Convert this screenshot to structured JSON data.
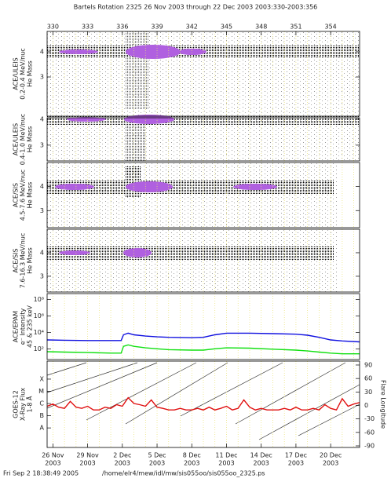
{
  "header": {
    "title": "Bartels Rotation 2325    26 Nov 2003 through 22 Dec 2003    2003:330-2003:356"
  },
  "footer": {
    "timestamp": "Fri Sep  2 18:38:49 2005",
    "path": "/home/elr4/mew/idl/mw/sis055oo/sis055oo_2325.ps"
  },
  "chart_data": [
    {
      "type": "density",
      "ylabel": [
        "ACE/ULEIS",
        "0.2-0.4 MeV/nuc",
        "He Mass"
      ],
      "xlim": [
        329.5,
        356.5
      ],
      "xticks": [
        330,
        333,
        336,
        339,
        342,
        345,
        348,
        351,
        354
      ],
      "grid_days": [
        330,
        331,
        332,
        333,
        334,
        335,
        336,
        337,
        338,
        339,
        340,
        341,
        342,
        343,
        344,
        345,
        346,
        347,
        348,
        349,
        350,
        351,
        352,
        353,
        354,
        355,
        356
      ],
      "grid_color": "#e8e070",
      "ylim": [
        1.44,
        4.81
      ],
      "yticks": [
        3,
        4
      ]
    },
    {
      "type": "density",
      "ylabel": [
        "ACE/ULEIS",
        "0.4-1.0 MeV/nuc",
        "He Mass"
      ],
      "xlim": [
        329.5,
        356.5
      ],
      "ylim": [
        2.39,
        4.06
      ],
      "yticks": [
        3,
        4
      ]
    },
    {
      "type": "density",
      "ylabel": [
        "ACE/SIS",
        "4.5-7.6 MeV/nuc",
        "He Mass"
      ],
      "xlim": [
        329.5,
        356.5
      ],
      "ylim": [
        2.29,
        5.0
      ],
      "yticks": [
        3,
        4
      ]
    },
    {
      "type": "density",
      "ylabel": [
        "ACE/SIS",
        "7.6-16.3 MeV/nuc",
        "He Mass"
      ],
      "xlim": [
        329.5,
        356.5
      ],
      "ylim": [
        2.33,
        5.0
      ],
      "yticks": [
        3,
        4
      ]
    },
    {
      "type": "line",
      "log_y": true,
      "ylabel": [
        "ACE/EPAM",
        "e⁻ Intensity",
        "45 & 235 keV"
      ],
      "xlim": [
        329.5,
        356.5
      ],
      "ylim": [
        5,
        500000000
      ],
      "yticks": [
        {
          "value": 100,
          "label": "10²"
        },
        {
          "value": 10000,
          "label": "10⁴"
        },
        {
          "value": 1000000,
          "label": "10⁶"
        },
        {
          "value": 100000000,
          "label": "10⁸"
        }
      ],
      "x": [
        329.5,
        331,
        333,
        335,
        335.9,
        336.1,
        336.5,
        337,
        338,
        339,
        340,
        342,
        343,
        344,
        345,
        347,
        349,
        351,
        352,
        353,
        354,
        355,
        356.5
      ],
      "series": [
        {
          "color": "#1010e0",
          "values": [
            1200,
            1100,
            1000,
            1000,
            1000,
            5000,
            8000,
            5000,
            3500,
            2800,
            2500,
            2200,
            2500,
            5000,
            8000,
            8000,
            7000,
            6000,
            4500,
            2500,
            1200,
            900,
            700
          ]
        },
        {
          "color": "#10e010",
          "values": [
            45,
            40,
            35,
            30,
            30,
            200,
            300,
            200,
            130,
            100,
            80,
            70,
            70,
            100,
            130,
            120,
            90,
            70,
            55,
            40,
            30,
            25,
            25
          ]
        }
      ]
    },
    {
      "type": "line",
      "log_y": true,
      "ylabel": [
        "GOES-12",
        "X-Ray Flux",
        "1-8 Å"
      ],
      "y2label": "Flare Longitude",
      "xlim": [
        329.5,
        356.5
      ],
      "ylim": [
        2.5e-10,
        0.003
      ],
      "yticks": [
        {
          "value": 1e-08,
          "label": "A"
        },
        {
          "value": 1e-07,
          "label": "B"
        },
        {
          "value": 1e-06,
          "label": "C"
        },
        {
          "value": 1e-05,
          "label": "M"
        },
        {
          "value": 0.0001,
          "label": "X"
        }
      ],
      "y2lim": [
        -93.5,
        98.7
      ],
      "y2ticks": [
        -90,
        -60,
        -30,
        0,
        30,
        60,
        90
      ],
      "xticks": [
        {
          "value": 330,
          "label": "26 Nov"
        },
        {
          "value": 333,
          "label": "29 Nov"
        },
        {
          "value": 336,
          "label": "2 Dec"
        },
        {
          "value": 339,
          "label": "5 Dec"
        },
        {
          "value": 342,
          "label": "8 Dec"
        },
        {
          "value": 345,
          "label": "11 Dec"
        },
        {
          "value": 348,
          "label": "14 Dec"
        },
        {
          "value": 351,
          "label": "17 Dec"
        },
        {
          "value": 354,
          "label": "20 Dec"
        }
      ],
      "xtick_year": "2003",
      "x": [
        329.5,
        330,
        330.5,
        331,
        331.5,
        332,
        332.5,
        333,
        333.5,
        334,
        334.5,
        335,
        335.5,
        336,
        336.5,
        337,
        337.5,
        338,
        338.5,
        339,
        339.5,
        340,
        340.5,
        341,
        341.5,
        342,
        342.5,
        343,
        343.5,
        344,
        344.5,
        345,
        345.5,
        346,
        346.5,
        347,
        347.5,
        348,
        348.5,
        349,
        349.5,
        350,
        350.5,
        351,
        351.5,
        352,
        352.5,
        353,
        353.5,
        354,
        354.5,
        355,
        355.5,
        356,
        356.5
      ],
      "series": [
        {
          "color": "#e01010",
          "values": [
            6e-07,
            9e-07,
            5e-07,
            4e-07,
            1.5e-06,
            5e-07,
            4e-07,
            6e-07,
            3e-07,
            3e-07,
            5e-07,
            4e-07,
            8e-07,
            6e-07,
            3e-06,
            1e-06,
            8e-07,
            6e-07,
            2e-06,
            5e-07,
            4e-07,
            3e-07,
            3e-07,
            4e-07,
            3e-07,
            3e-07,
            4e-07,
            3e-07,
            5e-07,
            3e-07,
            4e-07,
            6e-07,
            3e-07,
            4e-07,
            2e-06,
            5e-07,
            3e-07,
            4e-07,
            3e-07,
            3e-07,
            3e-07,
            4e-07,
            3e-07,
            5e-07,
            3e-07,
            3e-07,
            4e-07,
            3e-07,
            8e-07,
            4e-07,
            3e-07,
            2.5e-06,
            6e-07,
            9e-07,
            1.2e-06
          ]
        }
      ]
    }
  ]
}
